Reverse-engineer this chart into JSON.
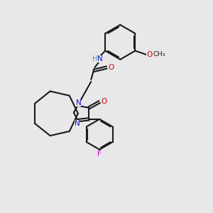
{
  "background_color": "#e8e8e8",
  "bond_color": "#1a1a1a",
  "nitrogen_color": "#1414d4",
  "oxygen_color": "#cc0000",
  "fluorine_color": "#cc00cc",
  "hydrogen_color": "#4a9a9a",
  "figsize": [
    3.0,
    3.0
  ],
  "dpi": 100,
  "xlim": [
    0,
    10
  ],
  "ylim": [
    0,
    10
  ]
}
